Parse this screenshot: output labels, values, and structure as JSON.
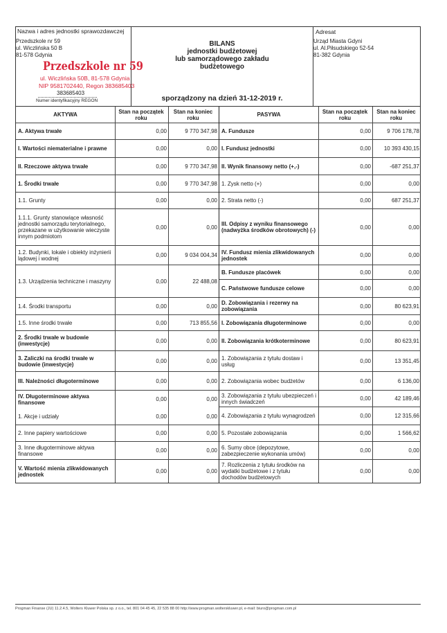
{
  "header": {
    "sender_label": "Nazwa i adres jednostki sprawozdawczej",
    "sender_lines": [
      "Przedszkole nr 59",
      "ul. Wiczlińska 50 B",
      "81-578 Gdynia"
    ],
    "stamp": {
      "name": "Przedszkole nr 59",
      "address": "ul. Wiczlińska 50B, 81-578 Gdynia",
      "ids": "NIP 9581702440, Regon 383685403",
      "color": "#d8283c"
    },
    "regon_value": "383685403",
    "regon_label": "Numer identyfikacyjny REGON",
    "title_lines": [
      "BILANS",
      "jednostki budżetowej",
      "lub samorządowego zakładu",
      "budżetowego"
    ],
    "date_line": "sporządzony na dzień 31-12-2019 r.",
    "addressee_label": "Adresat",
    "addressee_lines": [
      "Urząd Miasta Gdyni",
      "ul. Al.Piłsudskiego 52-54",
      "81-382 Gdynia"
    ]
  },
  "columns": {
    "assets": "AKTYWA",
    "liabilities": "PASYWA",
    "start": "Stan na początek roku",
    "end": "Stan na koniec roku"
  },
  "assets": [
    {
      "label": "A. Aktywa trwałe",
      "start": "0,00",
      "end": "9 770 347,98",
      "bold": true
    },
    {
      "label": "I. Wartości niematerialne i prawne",
      "start": "0,00",
      "end": "0,00",
      "bold": true
    },
    {
      "label": "II. Rzeczowe aktywa trwałe",
      "start": "0,00",
      "end": "9 770 347,98",
      "bold": true
    },
    {
      "label": "1. Środki trwałe",
      "start": "0,00",
      "end": "9 770 347,98",
      "bold": true
    },
    {
      "label": "1.1. Grunty",
      "start": "0,00",
      "end": "0,00"
    },
    {
      "label": "1.1.1. Grunty stanowiące własność jednostki samorządu terytorialnego, przekazane w użytkowanie wieczyste innym podmiotom",
      "start": "0,00",
      "end": "0,00"
    },
    {
      "label": "1.2. Budynki, lokale i obiekty inżynierii lądowej i wodnej",
      "start": "0,00",
      "end": "9 034 004,34"
    },
    {
      "label": "1.3. Urządzenia techniczne i maszyny",
      "start": "0,00",
      "end": "22 488,08"
    },
    {
      "label": "1.4. Środki transportu",
      "start": "0,00",
      "end": "0,00"
    },
    {
      "label": "1.5. Inne środki trwałe",
      "start": "0,00",
      "end": "713 855,56"
    },
    {
      "label": "2. Środki trwałe w budowie (inwestycje)",
      "start": "0,00",
      "end": "0,00",
      "bold": true
    },
    {
      "label": "3. Zaliczki na środki trwałe w budowie (inwestycje)",
      "start": "0,00",
      "end": "0,00",
      "bold": true
    },
    {
      "label": "III. Należności długoterminowe",
      "start": "0,00",
      "end": "0,00",
      "bold": true
    },
    {
      "label": "IV. Długoterminowe aktywa finansowe",
      "start": "0,00",
      "end": "0,00",
      "bold": true
    },
    {
      "label": "1. Akcje i udziały",
      "start": "0,00",
      "end": "0,00"
    },
    {
      "label": "2. Inne papiery wartościowe",
      "start": "0,00",
      "end": "0,00"
    },
    {
      "label": "3. Inne długoterminowe aktywa finansowe",
      "start": "0,00",
      "end": "0,00"
    },
    {
      "label": "V. Wartość mienia zlikwidowanych jednostek",
      "start": "0,00",
      "end": "0,00",
      "bold": true
    }
  ],
  "liabilities": [
    {
      "label": "A. Fundusze",
      "start": "0,00",
      "end": "9 706 178,78",
      "bold": true
    },
    {
      "label": "I. Fundusz jednostki",
      "start": "0,00",
      "end": "10 393 430,15",
      "bold": true
    },
    {
      "label": "II. Wynik finansowy netto (+,-)",
      "start": "0,00",
      "end": "-687 251,37",
      "bold": true
    },
    {
      "label": "1. Zysk netto (+)",
      "start": "0,00",
      "end": "0,00"
    },
    {
      "label": "2. Strata netto (-)",
      "start": "0,00",
      "end": "687 251,37"
    },
    {
      "label": "III. Odpisy z wyniku finansowego (nadwyżka środków obrotowych) (-)",
      "start": "0,00",
      "end": "0,00",
      "bold": true
    },
    {
      "label": "IV. Fundusz mienia zlikwidowanych jednostek",
      "start": "0,00",
      "end": "0,00",
      "bold": true
    },
    {
      "label": "B. Fundusze placówek",
      "start": "0,00",
      "end": "0,00",
      "bold": true
    },
    {
      "label": "C. Państwowe fundusze celowe",
      "start": "0,00",
      "end": "0,00",
      "bold": true
    },
    {
      "label": "D. Zobowiązania i rezerwy na zobowiązania",
      "start": "0,00",
      "end": "80 623,91",
      "bold": true
    },
    {
      "label": "I. Zobowiązania długoterminowe",
      "start": "0,00",
      "end": "0,00",
      "bold": true
    },
    {
      "label": "II. Zobowiązania krótkoterminowe",
      "start": "0,00",
      "end": "80 623,91",
      "bold": true
    },
    {
      "label": "1. Zobowiązania z tytułu dostaw i usług",
      "start": "0,00",
      "end": "13 351,45"
    },
    {
      "label": "2. Zobowiązania wobec budżetów",
      "start": "0,00",
      "end": "6 136,00"
    },
    {
      "label": "3. Zobowiązania z tytułu ubezpieczeń i innych świadczeń",
      "start": "0,00",
      "end": "42 189,46"
    },
    {
      "label": "4. Zobowiązania z tytułu wynagrodzeń",
      "start": "0,00",
      "end": "12 315,66"
    },
    {
      "label": "5. Pozostałe zobowiązania",
      "start": "0,00",
      "end": "1 566,62"
    },
    {
      "label": "6. Sumy obce (depozytowe, zabezpieczenie wykonania umów)",
      "start": "0,00",
      "end": "0,00"
    },
    {
      "label": "7. Rozliczenia z tytułu środków na wydatki budżetowe i z tytułu dochodów budżetowych",
      "start": "0,00",
      "end": "0,00"
    }
  ],
  "footer": "Progman Finanse (JU) 11.2.4.5, Wolters Kluwer Polska sp. z o.o., tel. 801 04 45 45, 22 535 88 00 http://www.progman.wolterskluwer.pl, e-mail: biuro@progman.com.pl"
}
